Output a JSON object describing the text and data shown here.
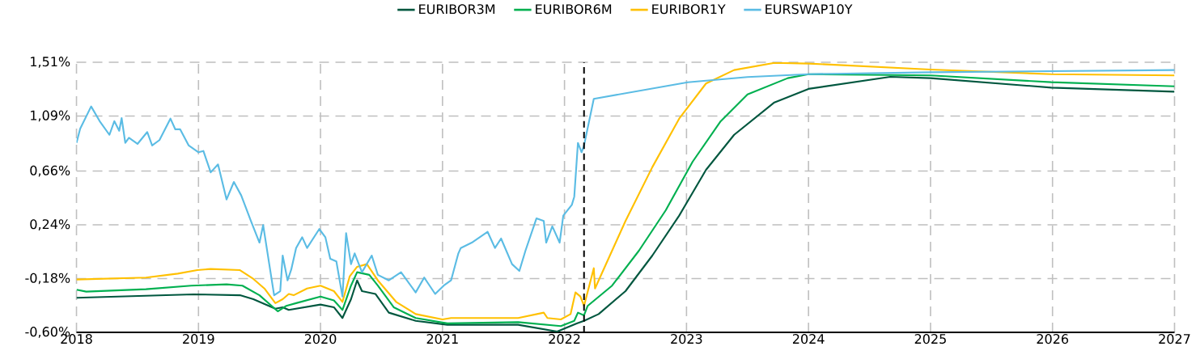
{
  "chart_data": {
    "type": "line",
    "xlim": [
      2018,
      2027
    ],
    "xticks": [
      2018,
      2019,
      2020,
      2021,
      2022,
      2023,
      2024,
      2025,
      2026,
      2027
    ],
    "ylim": [
      -0.6,
      1.51
    ],
    "yticks": [
      {
        "value": -0.6,
        "label": "-0,60%"
      },
      {
        "value": -0.18,
        "label": "-0,18%"
      },
      {
        "value": 0.24,
        "label": "0,24%"
      },
      {
        "value": 0.66,
        "label": "0,66%"
      },
      {
        "value": 1.09,
        "label": "1,09%"
      },
      {
        "value": 1.51,
        "label": "1,51%"
      }
    ],
    "grid": true,
    "legend": "top",
    "marker": "none",
    "line_style": "solid",
    "ref_lines": [
      {
        "axis": "x",
        "value": 2022.16,
        "color": "#000000",
        "line_style": "dashed"
      }
    ],
    "series": [
      {
        "name": "EURIBOR3M",
        "color": "#00573f",
        "x": [
          2018.0,
          2018.96,
          2019.34,
          2019.45,
          2019.63,
          2019.69,
          2019.74,
          2020.0,
          2020.11,
          2020.18,
          2020.25,
          2020.3,
          2020.34,
          2020.45,
          2020.56,
          2020.78,
          2021.04,
          2021.62,
          2021.94,
          2022.1,
          2022.16,
          2022.28,
          2022.5,
          2022.72,
          2022.94,
          2023.16,
          2023.39,
          2023.72,
          2024.0,
          2024.67,
          2025.0,
          2025.99,
          2027.0
        ],
        "values": [
          -0.33,
          -0.303,
          -0.31,
          -0.341,
          -0.415,
          -0.404,
          -0.425,
          -0.383,
          -0.404,
          -0.488,
          -0.341,
          -0.194,
          -0.278,
          -0.3,
          -0.446,
          -0.51,
          -0.541,
          -0.541,
          -0.594,
          -0.53,
          -0.51,
          -0.457,
          -0.278,
          0.0,
          0.312,
          0.67,
          0.943,
          1.196,
          1.302,
          1.396,
          1.386,
          1.312,
          1.28
        ]
      },
      {
        "name": "EURIBOR6M",
        "color": "#00b050",
        "x": [
          2018.0,
          2018.08,
          2018.57,
          2018.94,
          2019.23,
          2019.36,
          2019.5,
          2019.65,
          2019.72,
          2019.8,
          2020.0,
          2020.11,
          2020.18,
          2020.25,
          2020.3,
          2020.4,
          2020.47,
          2020.6,
          2020.78,
          2021.04,
          2021.62,
          2021.97,
          2022.08,
          2022.11,
          2022.16,
          2022.19,
          2022.39,
          2022.61,
          2022.83,
          2023.05,
          2023.28,
          2023.5,
          2023.83,
          2024.0,
          2025.0,
          2025.99,
          2027.0
        ],
        "values": [
          -0.267,
          -0.282,
          -0.263,
          -0.235,
          -0.225,
          -0.235,
          -0.31,
          -0.436,
          -0.393,
          -0.372,
          -0.32,
          -0.351,
          -0.425,
          -0.235,
          -0.13,
          -0.151,
          -0.235,
          -0.404,
          -0.488,
          -0.53,
          -0.52,
          -0.551,
          -0.51,
          -0.446,
          -0.467,
          -0.393,
          -0.235,
          0.038,
          0.354,
          0.733,
          1.049,
          1.259,
          1.386,
          1.417,
          1.407,
          1.354,
          1.322
        ]
      },
      {
        "name": "EURIBOR1Y",
        "color": "#ffc000",
        "x": [
          2018.0,
          2018.57,
          2018.83,
          2018.99,
          2019.1,
          2019.34,
          2019.45,
          2019.54,
          2019.63,
          2019.69,
          2019.74,
          2019.78,
          2019.89,
          2020.0,
          2020.11,
          2020.18,
          2020.24,
          2020.3,
          2020.38,
          2020.47,
          2020.62,
          2020.78,
          2021.0,
          2021.07,
          2021.62,
          2021.83,
          2021.86,
          2021.97,
          2022.05,
          2022.09,
          2022.13,
          2022.16,
          2022.24,
          2022.25,
          2022.5,
          2022.72,
          2022.94,
          2023.16,
          2023.39,
          2023.72,
          2024.0,
          2025.0,
          2025.99,
          2027.0
        ],
        "values": [
          -0.187,
          -0.172,
          -0.141,
          -0.114,
          -0.105,
          -0.114,
          -0.183,
          -0.257,
          -0.372,
          -0.341,
          -0.3,
          -0.31,
          -0.257,
          -0.235,
          -0.278,
          -0.362,
          -0.162,
          -0.088,
          -0.067,
          -0.194,
          -0.362,
          -0.457,
          -0.499,
          -0.488,
          -0.488,
          -0.446,
          -0.488,
          -0.499,
          -0.457,
          -0.288,
          -0.32,
          -0.393,
          -0.099,
          -0.257,
          0.27,
          0.691,
          1.07,
          1.344,
          1.449,
          1.505,
          1.5,
          1.453,
          1.417,
          1.407
        ]
      },
      {
        "name": "EURSWAP10Y",
        "color": "#5bbce4",
        "x": [
          2018.0,
          2018.03,
          2018.12,
          2018.19,
          2018.27,
          2018.31,
          2018.35,
          2018.37,
          2018.4,
          2018.43,
          2018.5,
          2018.58,
          2018.62,
          2018.68,
          2018.77,
          2018.81,
          2018.85,
          2018.92,
          2019.0,
          2019.04,
          2019.1,
          2019.16,
          2019.23,
          2019.29,
          2019.35,
          2019.43,
          2019.5,
          2019.53,
          2019.58,
          2019.62,
          2019.67,
          2019.69,
          2019.73,
          2019.76,
          2019.8,
          2019.85,
          2019.89,
          2019.99,
          2020.04,
          2020.08,
          2020.13,
          2020.18,
          2020.21,
          2020.25,
          2020.28,
          2020.34,
          2020.42,
          2020.47,
          2020.56,
          2020.66,
          2020.78,
          2020.85,
          2020.94,
          2021.01,
          2021.07,
          2021.13,
          2021.15,
          2021.24,
          2021.37,
          2021.43,
          2021.48,
          2021.57,
          2021.63,
          2021.68,
          2021.77,
          2021.83,
          2021.85,
          2021.9,
          2021.96,
          2021.99,
          2022.06,
          2022.08,
          2022.11,
          2022.14,
          2022.16,
          2022.24,
          2023.01,
          2023.5,
          2024.0,
          2025.0,
          2027.0
        ],
        "values": [
          0.88,
          0.99,
          1.165,
          1.05,
          0.943,
          1.05,
          0.975,
          1.074,
          0.88,
          0.92,
          0.872,
          0.965,
          0.86,
          0.902,
          1.07,
          0.986,
          0.986,
          0.86,
          0.807,
          0.817,
          0.65,
          0.712,
          0.438,
          0.575,
          0.47,
          0.27,
          0.101,
          0.238,
          -0.067,
          -0.31,
          -0.278,
          0.0,
          -0.194,
          -0.11,
          0.059,
          0.143,
          0.059,
          0.207,
          0.143,
          -0.025,
          -0.046,
          -0.32,
          0.175,
          -0.067,
          0.017,
          -0.13,
          0.0,
          -0.151,
          -0.194,
          -0.13,
          -0.288,
          -0.172,
          -0.3,
          -0.235,
          -0.194,
          0.017,
          0.059,
          0.101,
          0.185,
          0.059,
          0.133,
          -0.067,
          -0.12,
          0.038,
          0.29,
          0.27,
          0.101,
          0.228,
          0.101,
          0.312,
          0.396,
          0.46,
          0.88,
          0.807,
          0.86,
          1.224,
          1.354,
          1.395,
          1.417,
          1.432,
          1.449
        ]
      }
    ]
  }
}
